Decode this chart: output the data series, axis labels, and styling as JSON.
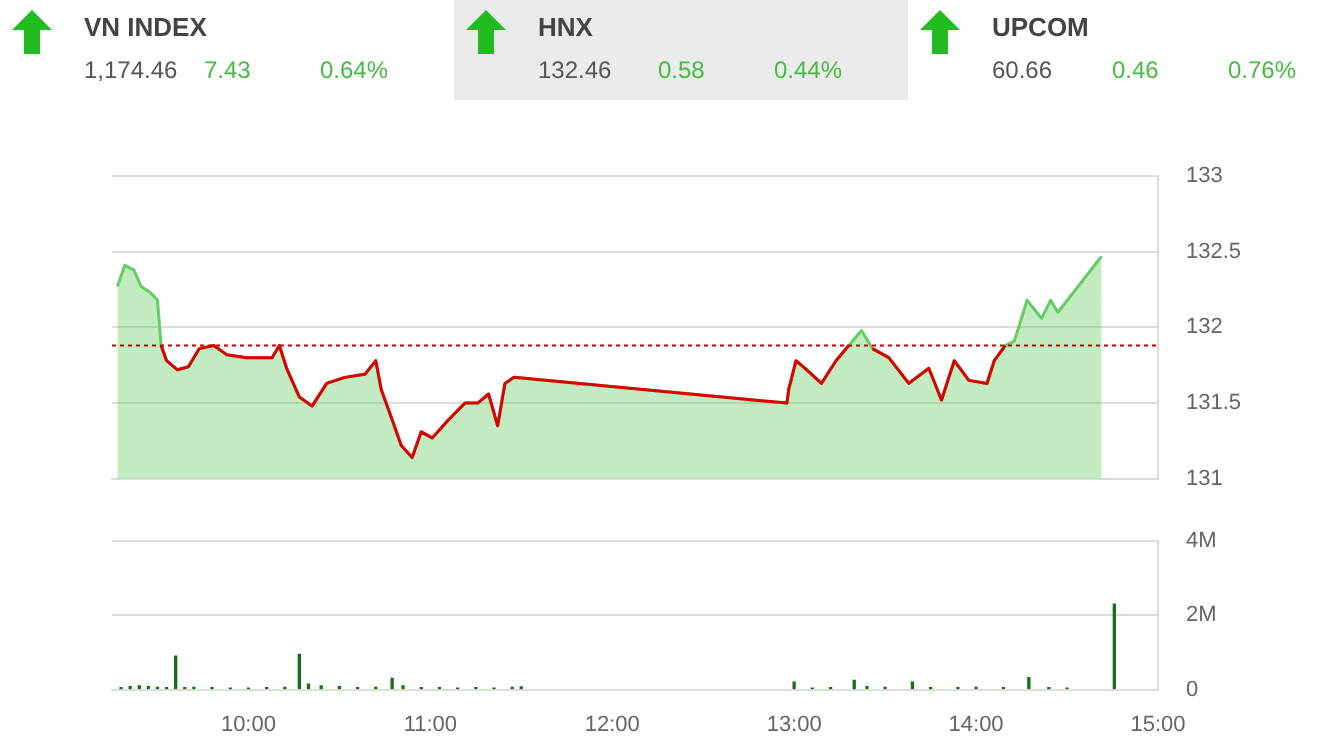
{
  "chart_data": [
    {
      "type": "other",
      "title": "VN INDEX",
      "annotations": [
        "1,174.46",
        "7.43",
        "0.64%"
      ]
    },
    {
      "type": "other",
      "title": "HNX",
      "annotations": [
        "132.46",
        "0.58",
        "0.44%"
      ]
    },
    {
      "type": "other",
      "title": "UPCOM",
      "annotations": [
        "60.66",
        "0.46",
        "0.76%"
      ]
    },
    {
      "type": "area",
      "xlim": [
        9.25,
        15
      ],
      "ylim": [
        131,
        133
      ],
      "yticks": [
        131,
        131.5,
        132,
        132.5,
        133
      ],
      "grid": "y",
      "tick_labels": "y",
      "marker": "none",
      "ref_lines": [
        {
          "axis": "y",
          "value": 131.88,
          "color": "#cc0000",
          "line_style": "dotted"
        }
      ],
      "series": [
        {
          "color": "#66cc66",
          "x": [
            9.28,
            9.32,
            9.37,
            9.41,
            9.46,
            9.5,
            9.52,
            9.55,
            9.61,
            9.67,
            9.73,
            9.81,
            9.88,
            9.99,
            10.13,
            10.17,
            10.21,
            10.28,
            10.35,
            10.43,
            10.53,
            10.64,
            10.7,
            10.73,
            10.79,
            10.84,
            10.9,
            10.95,
            11.01,
            11.1,
            11.19,
            11.26,
            11.32,
            11.37,
            11.41,
            11.46,
            12.96,
            12.97,
            13.01,
            13.06,
            13.15,
            13.23,
            13.3,
            13.37,
            13.43,
            13.52,
            13.63,
            13.74,
            13.81,
            13.88,
            13.96,
            14.06,
            14.1,
            14.16,
            14.21,
            14.25,
            14.28,
            14.36,
            14.41,
            14.45,
            14.69
          ],
          "values": [
            132.27,
            132.41,
            132.38,
            132.27,
            132.23,
            132.18,
            131.88,
            131.78,
            131.72,
            131.74,
            131.86,
            131.88,
            131.82,
            131.8,
            131.8,
            131.88,
            131.73,
            131.54,
            131.48,
            131.63,
            131.67,
            131.69,
            131.78,
            131.59,
            131.39,
            131.22,
            131.14,
            131.31,
            131.27,
            131.39,
            131.5,
            131.5,
            131.56,
            131.35,
            131.63,
            131.67,
            131.5,
            131.59,
            131.78,
            131.73,
            131.63,
            131.78,
            131.88,
            131.98,
            131.86,
            131.8,
            131.63,
            131.73,
            131.52,
            131.78,
            131.65,
            131.63,
            131.78,
            131.88,
            131.91,
            132.06,
            132.18,
            132.06,
            132.18,
            132.1,
            132.47
          ]
        },
        {
          "type": "line",
          "color": "#dd0000",
          "x": [
            9.52,
            9.55,
            9.61,
            9.67,
            9.73,
            9.81,
            9.88,
            9.99,
            10.13,
            10.17,
            10.21,
            10.28,
            10.35,
            10.43,
            10.53,
            10.64,
            10.7,
            10.73,
            10.79,
            10.84,
            10.9,
            10.95,
            11.01,
            11.1,
            11.19,
            11.26,
            11.32,
            11.37,
            11.41,
            11.46,
            12.96,
            12.97,
            13.01,
            13.06,
            13.15,
            13.23,
            13.3,
            13.37,
            13.43,
            13.52,
            13.63,
            13.74,
            13.81,
            13.88,
            13.96,
            14.06,
            14.1,
            14.16
          ],
          "values": [
            131.88,
            131.78,
            131.72,
            131.74,
            131.86,
            131.88,
            131.82,
            131.8,
            131.8,
            131.88,
            131.73,
            131.54,
            131.48,
            131.63,
            131.67,
            131.69,
            131.78,
            131.59,
            131.39,
            131.22,
            131.14,
            131.31,
            131.27,
            131.39,
            131.5,
            131.5,
            131.56,
            131.35,
            131.63,
            131.67,
            131.5,
            131.59,
            131.78,
            131.73,
            131.63,
            131.78,
            131.88,
            null,
            131.86,
            131.8,
            131.63,
            131.73,
            131.52,
            131.78,
            131.65,
            131.63,
            131.78,
            131.88
          ]
        }
      ]
    },
    {
      "type": "bar",
      "xlim": [
        9.25,
        15
      ],
      "xticks": [
        {
          "value": 10,
          "label": "10:00"
        },
        {
          "value": 11,
          "label": "11:00"
        },
        {
          "value": 12,
          "label": "12:00"
        },
        {
          "value": 13,
          "label": "13:00"
        },
        {
          "value": 14,
          "label": "14:00"
        },
        {
          "value": 15,
          "label": "15:00"
        }
      ],
      "ylim": [
        0,
        4
      ],
      "yticks": [
        0,
        {
          "value": 2,
          "label": "2M"
        },
        {
          "value": 4,
          "label": "4M"
        }
      ],
      "grid": "y",
      "series": [
        {
          "color": "#1a6e1a",
          "x": [
            9.3,
            9.35,
            9.4,
            9.45,
            9.5,
            9.55,
            9.6,
            9.65,
            9.7,
            9.8,
            9.9,
            10,
            10.1,
            10.2,
            10.28,
            10.33,
            10.4,
            10.5,
            10.6,
            10.7,
            10.79,
            10.85,
            10.95,
            11.05,
            11.15,
            11.25,
            11.35,
            11.45,
            11.5,
            13,
            13.1,
            13.2,
            13.33,
            13.4,
            13.5,
            13.65,
            13.75,
            13.9,
            14,
            14.15,
            14.29,
            14.4,
            14.5,
            14.76
          ],
          "values": [
            0.05,
            0.08,
            0.1,
            0.08,
            0.06,
            0.05,
            0.9,
            0.05,
            0.06,
            0.05,
            0.04,
            0.04,
            0.05,
            0.06,
            0.95,
            0.15,
            0.1,
            0.08,
            0.05,
            0.06,
            0.3,
            0.1,
            0.05,
            0.05,
            0.04,
            0.05,
            0.04,
            0.06,
            0.07,
            0.2,
            0.04,
            0.05,
            0.25,
            0.08,
            0.06,
            0.2,
            0.05,
            0.05,
            0.06,
            0.05,
            0.32,
            0.05,
            0.04,
            2.3
          ]
        }
      ]
    }
  ]
}
